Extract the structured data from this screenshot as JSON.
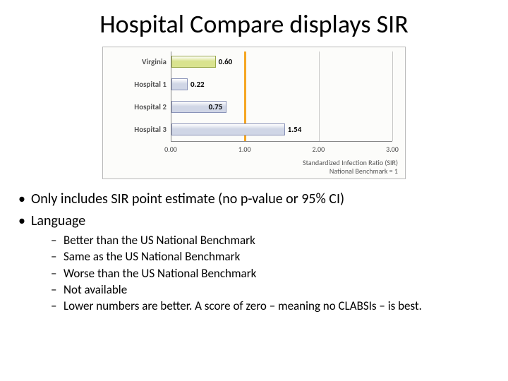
{
  "title": "Hospital Compare displays SIR",
  "chart": {
    "type": "bar-horizontal",
    "background_color": "#fcfcfa",
    "border_color": "#b8b8b8",
    "grid_color": "#c8c8c8",
    "axis_color": "#888888",
    "xlim": [
      0.0,
      3.0
    ],
    "xtick_step": 1.0,
    "xticks": [
      "0.00",
      "1.00",
      "2.00",
      "3.00"
    ],
    "benchmark_value": 1.0,
    "benchmark_color": "#f5a623",
    "caption_line1": "Standardized Infection Ratio (SIR)",
    "caption_line2": "National Benchmark = 1",
    "label_fontsize": 11,
    "tick_fontsize": 10,
    "bars": [
      {
        "label": "Virginia",
        "value": 0.6,
        "value_label": "0.60",
        "fill": "#d9e38f",
        "border": "#9aa94a",
        "label_inside": false
      },
      {
        "label": "Hospital 1",
        "value": 0.22,
        "value_label": "0.22",
        "fill": "#d0d6e6",
        "border": "#8a93b8",
        "label_inside": false
      },
      {
        "label": "Hospital 2",
        "value": 0.75,
        "value_label": "0.75",
        "fill": "#d0d6e6",
        "border": "#8a93b8",
        "label_inside": true
      },
      {
        "label": "Hospital 3",
        "value": 1.54,
        "value_label": "1.54",
        "fill": "#d0d6e6",
        "border": "#8a93b8",
        "label_inside": false
      }
    ]
  },
  "bullets": [
    "Only includes SIR point estimate (no p-value or 95% CI)",
    "Language"
  ],
  "sub_bullets": [
    "Better than the US National Benchmark",
    "Same as the US National Benchmark",
    "Worse than the US National Benchmark",
    "Not available",
    "Lower numbers are better. A score of zero – meaning no CLABSIs – is best."
  ]
}
